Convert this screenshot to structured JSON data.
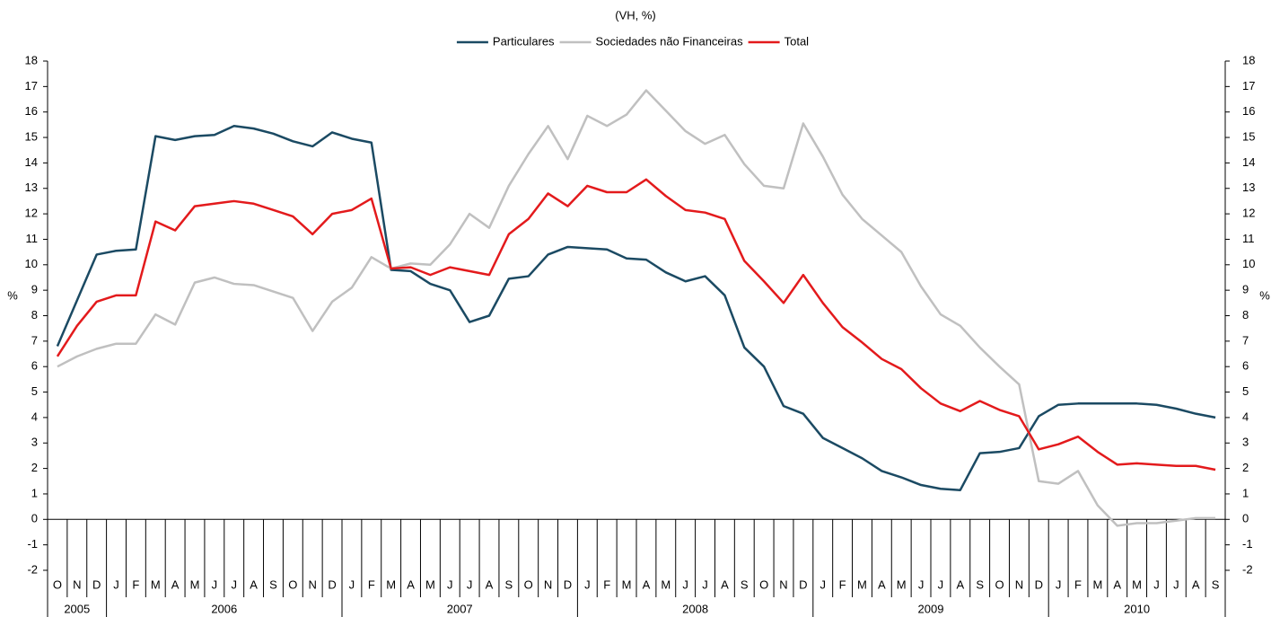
{
  "chart_data": {
    "type": "line",
    "title": "(VH, %)",
    "y_label": "%",
    "y2_label": "%",
    "categories": [
      "O",
      "N",
      "D",
      "J",
      "F",
      "M",
      "A",
      "M",
      "J",
      "J",
      "A",
      "S",
      "O",
      "N",
      "D",
      "J",
      "F",
      "M",
      "A",
      "M",
      "J",
      "J",
      "A",
      "S",
      "O",
      "N",
      "D",
      "J",
      "F",
      "M",
      "A",
      "M",
      "J",
      "J",
      "A",
      "S",
      "O",
      "N",
      "D",
      "J",
      "F",
      "M",
      "A",
      "M",
      "J",
      "J",
      "A",
      "S",
      "O",
      "N",
      "D",
      "J",
      "F",
      "M",
      "A",
      "M",
      "J",
      "J",
      "A",
      "S"
    ],
    "years": [
      "2005",
      "2006",
      "2007",
      "2008",
      "2009",
      "2010"
    ],
    "series": [
      {
        "name": "Particulares",
        "color": "#1b4a63",
        "values": [
          6.8,
          8.6,
          10.4,
          10.55,
          10.6,
          15.05,
          14.9,
          15.05,
          15.1,
          15.45,
          15.35,
          15.15,
          14.85,
          14.65,
          15.2,
          14.95,
          14.8,
          9.8,
          9.75,
          9.25,
          9.0,
          7.75,
          8.0,
          9.45,
          9.55,
          10.4,
          10.7,
          10.65,
          10.6,
          10.25,
          10.2,
          9.7,
          9.35,
          9.55,
          8.8,
          6.75,
          6.0,
          4.45,
          4.15,
          3.2,
          2.8,
          2.4,
          1.9,
          1.65,
          1.35,
          1.2,
          1.15,
          2.6,
          2.65,
          2.8,
          4.05,
          4.5,
          4.55,
          4.55,
          4.55,
          4.55,
          4.5,
          4.35,
          4.15,
          4.0
        ]
      },
      {
        "name": "Sociedades não Financeiras",
        "color": "#c0c0c0",
        "values": [
          6.0,
          6.4,
          6.7,
          6.9,
          6.9,
          8.05,
          7.65,
          9.3,
          9.5,
          9.25,
          9.2,
          8.95,
          8.7,
          7.4,
          8.55,
          9.1,
          10.3,
          9.85,
          10.05,
          10.0,
          10.8,
          12.0,
          11.45,
          13.1,
          14.35,
          15.45,
          14.15,
          15.85,
          15.45,
          15.9,
          16.85,
          16.05,
          15.25,
          14.75,
          15.1,
          13.95,
          13.1,
          13.0,
          15.55,
          14.25,
          12.75,
          11.8,
          11.15,
          10.5,
          9.15,
          8.05,
          7.6,
          6.75,
          6.0,
          5.3,
          1.5,
          1.4,
          1.9,
          0.55,
          -0.25,
          -0.15,
          -0.15,
          -0.05,
          0.05,
          0.05
        ]
      },
      {
        "name": "Total",
        "color": "#e31a1c",
        "values": [
          6.4,
          7.6,
          8.55,
          8.8,
          8.8,
          11.7,
          11.35,
          12.3,
          12.4,
          12.5,
          12.4,
          12.15,
          11.9,
          11.2,
          12.0,
          12.15,
          12.6,
          9.85,
          9.9,
          9.6,
          9.9,
          9.75,
          9.6,
          11.2,
          11.8,
          12.8,
          12.3,
          13.1,
          12.85,
          12.85,
          13.35,
          12.7,
          12.15,
          12.05,
          11.8,
          10.15,
          9.35,
          8.5,
          9.6,
          8.5,
          7.55,
          6.95,
          6.3,
          5.9,
          5.15,
          4.55,
          4.25,
          4.65,
          4.3,
          4.05,
          2.75,
          2.95,
          3.25,
          2.65,
          2.15,
          2.2,
          2.15,
          2.1,
          2.1,
          1.95
        ]
      }
    ],
    "ylim": [
      -2,
      18
    ],
    "yticks": [
      -2,
      -1,
      0,
      1,
      2,
      3,
      4,
      5,
      6,
      7,
      8,
      9,
      10,
      11,
      12,
      13,
      14,
      15,
      16,
      17,
      18
    ],
    "y2lim": [
      -2,
      18
    ],
    "y2ticks": [
      -2,
      -1,
      0,
      1,
      2,
      3,
      4,
      5,
      6,
      7,
      8,
      9,
      10,
      11,
      12,
      13,
      14,
      15,
      16,
      17,
      18
    ],
    "legend": "top"
  }
}
